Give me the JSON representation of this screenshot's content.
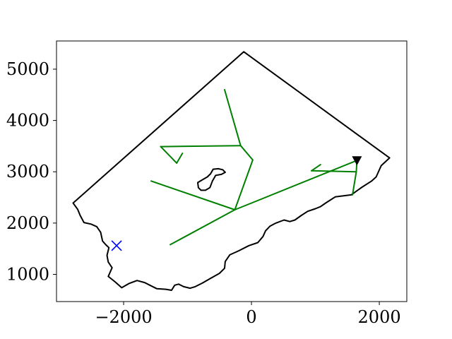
{
  "chart_data": {
    "type": "line",
    "title": "",
    "xlabel": "",
    "ylabel": "",
    "xlim": [
      -3050,
      2430
    ],
    "ylim": [
      470,
      5550
    ],
    "grid": false,
    "legend": "none",
    "x_ticks": [
      {
        "value": -2000,
        "label": "−2000"
      },
      {
        "value": 0,
        "label": "0"
      },
      {
        "value": 2000,
        "label": "2000"
      }
    ],
    "y_ticks": [
      {
        "value": 1000,
        "label": "1000"
      },
      {
        "value": 2000,
        "label": "2000"
      },
      {
        "value": 3000,
        "label": "3000"
      },
      {
        "value": 4000,
        "label": "4000"
      },
      {
        "value": 5000,
        "label": "5000"
      }
    ],
    "series": [
      {
        "kind": "boundary",
        "color": "#000000",
        "closed": true,
        "points": [
          [
            -2790,
            2390
          ],
          [
            -120,
            5340
          ],
          [
            2160,
            3270
          ],
          [
            2030,
            3120
          ],
          [
            1950,
            2900
          ],
          [
            1880,
            2820
          ],
          [
            1730,
            2700
          ],
          [
            1560,
            2550
          ],
          [
            1310,
            2510
          ],
          [
            1160,
            2390
          ],
          [
            1080,
            2320
          ],
          [
            1000,
            2280
          ],
          [
            880,
            2230
          ],
          [
            780,
            2150
          ],
          [
            680,
            2060
          ],
          [
            600,
            2030
          ],
          [
            510,
            2060
          ],
          [
            380,
            2000
          ],
          [
            290,
            1940
          ],
          [
            220,
            1850
          ],
          [
            180,
            1740
          ],
          [
            100,
            1620
          ],
          [
            -40,
            1560
          ],
          [
            -200,
            1460
          ],
          [
            -340,
            1380
          ],
          [
            -410,
            1250
          ],
          [
            -420,
            1120
          ],
          [
            -500,
            1020
          ],
          [
            -630,
            930
          ],
          [
            -770,
            830
          ],
          [
            -880,
            760
          ],
          [
            -960,
            730
          ],
          [
            -1060,
            760
          ],
          [
            -1140,
            810
          ],
          [
            -1200,
            790
          ],
          [
            -1250,
            690
          ],
          [
            -1340,
            710
          ],
          [
            -1480,
            720
          ],
          [
            -1590,
            790
          ],
          [
            -1670,
            840
          ],
          [
            -1790,
            880
          ],
          [
            -1920,
            820
          ],
          [
            -2030,
            740
          ],
          [
            -2130,
            850
          ],
          [
            -2240,
            960
          ],
          [
            -2180,
            1130
          ],
          [
            -2240,
            1240
          ],
          [
            -2260,
            1370
          ],
          [
            -2230,
            1520
          ],
          [
            -2280,
            1580
          ],
          [
            -2330,
            1650
          ],
          [
            -2360,
            1820
          ],
          [
            -2420,
            1930
          ],
          [
            -2510,
            1980
          ],
          [
            -2620,
            2010
          ],
          [
            -2680,
            2150
          ],
          [
            -2720,
            2270
          ],
          [
            -2790,
            2390
          ]
        ]
      },
      {
        "kind": "obstacle",
        "color": "#000000",
        "closed": true,
        "points": [
          [
            -640,
            2960
          ],
          [
            -600,
            3050
          ],
          [
            -520,
            3060
          ],
          [
            -450,
            3040
          ],
          [
            -410,
            2990
          ],
          [
            -470,
            2950
          ],
          [
            -560,
            2930
          ],
          [
            -610,
            2820
          ],
          [
            -650,
            2690
          ],
          [
            -720,
            2640
          ],
          [
            -790,
            2640
          ],
          [
            -830,
            2690
          ],
          [
            -840,
            2790
          ],
          [
            -760,
            2850
          ],
          [
            -690,
            2900
          ],
          [
            -640,
            2960
          ]
        ]
      },
      {
        "kind": "path",
        "color": "#008000",
        "segments": [
          [
            [
              -1270,
              1580
            ],
            [
              -260,
              2260
            ]
          ],
          [
            [
              -1570,
              2820
            ],
            [
              -260,
              2260
            ]
          ],
          [
            [
              -260,
              2260
            ],
            [
              1650,
              3220
            ]
          ],
          [
            [
              -260,
              2260
            ],
            [
              20,
              3230
            ]
          ],
          [
            [
              20,
              3230
            ],
            [
              -170,
              3510
            ]
          ],
          [
            [
              -170,
              3510
            ],
            [
              -420,
              4600
            ]
          ],
          [
            [
              -170,
              3510
            ],
            [
              -1420,
              3490
            ]
          ],
          [
            [
              -1420,
              3490
            ],
            [
              -1170,
              3170
            ]
          ],
          [
            [
              -1170,
              3170
            ],
            [
              -1080,
              3360
            ]
          ],
          [
            [
              1650,
              3220
            ],
            [
              1640,
              3000
            ]
          ],
          [
            [
              1640,
              3000
            ],
            [
              940,
              3020
            ]
          ],
          [
            [
              940,
              3020
            ],
            [
              1080,
              3140
            ]
          ],
          [
            [
              1640,
              3000
            ],
            [
              1580,
              2550
            ]
          ]
        ]
      }
    ],
    "markers": [
      {
        "kind": "start",
        "shape": "x",
        "color": "#0000ff",
        "x": -2110,
        "y": 1560
      },
      {
        "kind": "goal",
        "shape": "triangle-down",
        "color": "#000000",
        "x": 1650,
        "y": 3220
      }
    ]
  }
}
